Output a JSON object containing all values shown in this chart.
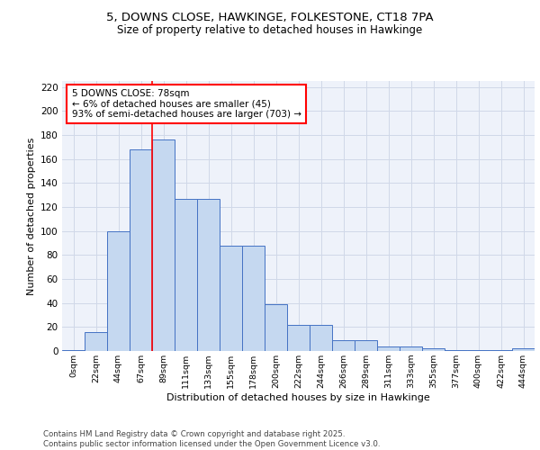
{
  "title_line1": "5, DOWNS CLOSE, HAWKINGE, FOLKESTONE, CT18 7PA",
  "title_line2": "Size of property relative to detached houses in Hawkinge",
  "xlabel": "Distribution of detached houses by size in Hawkinge",
  "ylabel": "Number of detached properties",
  "categories": [
    "0sqm",
    "22sqm",
    "44sqm",
    "67sqm",
    "89sqm",
    "111sqm",
    "133sqm",
    "155sqm",
    "178sqm",
    "200sqm",
    "222sqm",
    "244sqm",
    "266sqm",
    "289sqm",
    "311sqm",
    "333sqm",
    "355sqm",
    "377sqm",
    "400sqm",
    "422sqm",
    "444sqm"
  ],
  "values": [
    1,
    16,
    100,
    168,
    176,
    127,
    127,
    88,
    88,
    39,
    22,
    22,
    9,
    9,
    4,
    4,
    2,
    1,
    1,
    1,
    2
  ],
  "bar_color": "#c5d8f0",
  "bar_edge_color": "#4472c4",
  "grid_color": "#d0d8e8",
  "background_color": "#ffffff",
  "plot_bg_color": "#eef2fa",
  "redline_x": 3.5,
  "annotation_text": "5 DOWNS CLOSE: 78sqm\n← 6% of detached houses are smaller (45)\n93% of semi-detached houses are larger (703) →",
  "footer_text": "Contains HM Land Registry data © Crown copyright and database right 2025.\nContains public sector information licensed under the Open Government Licence v3.0.",
  "ylim": [
    0,
    225
  ],
  "yticks": [
    0,
    20,
    40,
    60,
    80,
    100,
    120,
    140,
    160,
    180,
    200,
    220
  ]
}
